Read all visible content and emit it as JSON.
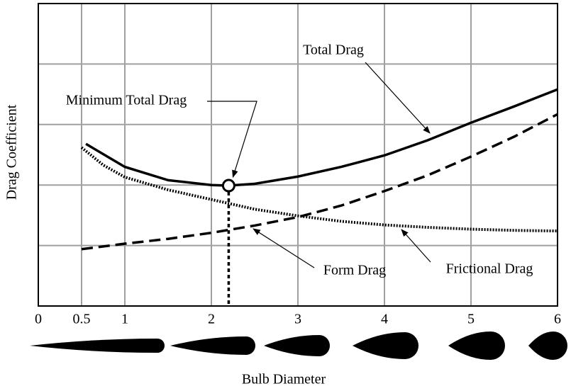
{
  "chart_data": {
    "type": "line",
    "x_label": "Bulb Diameter",
    "y_label": "Drag Coefficient",
    "xlim": [
      0,
      6
    ],
    "xticks": [
      0,
      0.5,
      1,
      2,
      3,
      4,
      5,
      6
    ],
    "ylim": [
      0,
      5
    ],
    "yticks": [
      0,
      1,
      2,
      3,
      4,
      5
    ],
    "grid": true,
    "series": [
      {
        "name": "Total Drag",
        "color": "#000000",
        "style": "solid",
        "x": [
          0.55,
          1,
          1.5,
          2,
          2.2,
          2.5,
          3,
          3.5,
          4,
          4.5,
          5,
          5.5,
          6
        ],
        "values": [
          2.68,
          2.3,
          2.08,
          2.0,
          1.99,
          2.02,
          2.14,
          2.3,
          2.49,
          2.74,
          3.03,
          3.3,
          3.58
        ]
      },
      {
        "name": "Form Drag",
        "color": "#000000",
        "style": "dashed",
        "x": [
          0.5,
          1,
          1.5,
          2,
          2.5,
          3,
          3.5,
          4,
          4.5,
          5,
          5.5,
          6
        ],
        "values": [
          0.94,
          1.03,
          1.11,
          1.21,
          1.33,
          1.47,
          1.66,
          1.9,
          2.16,
          2.47,
          2.8,
          3.17
        ]
      },
      {
        "name": "Frictional Drag",
        "color": "#000000",
        "style": "dotted",
        "x": [
          0.5,
          0.75,
          1,
          1.5,
          2,
          2.5,
          3,
          3.5,
          4,
          4.5,
          5,
          5.5,
          6
        ],
        "values": [
          2.62,
          2.33,
          2.13,
          1.92,
          1.76,
          1.6,
          1.49,
          1.4,
          1.34,
          1.3,
          1.27,
          1.25,
          1.24
        ]
      }
    ],
    "minimum": {
      "label": "Minimum Total Drag",
      "x": 2.2,
      "y": 1.99
    }
  }
}
